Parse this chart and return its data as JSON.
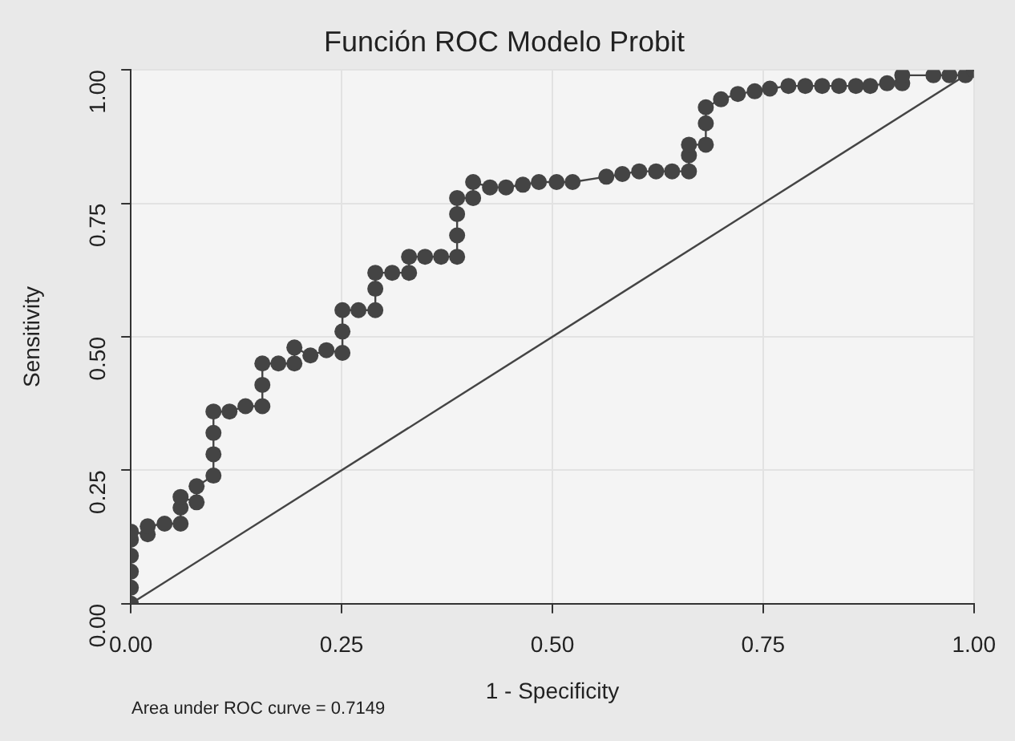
{
  "chart_data": {
    "type": "line",
    "title": "Función ROC Modelo Probit",
    "xlabel": "1 - Specificity",
    "ylabel": "Sensitivity",
    "annotations": [
      "Area under ROC curve = 0.7149"
    ],
    "series": [
      {
        "type": "line",
        "marker": "circle",
        "color": "#444444",
        "x": [
          0,
          0,
          0,
          0,
          0,
          0,
          0.02,
          0.02,
          0.04,
          0.059,
          0.059,
          0.059,
          0.078,
          0.078,
          0.098,
          0.098,
          0.098,
          0.098,
          0.117,
          0.136,
          0.156,
          0.156,
          0.156,
          0.175,
          0.194,
          0.194,
          0.213,
          0.232,
          0.251,
          0.251,
          0.251,
          0.27,
          0.29,
          0.29,
          0.29,
          0.31,
          0.33,
          0.33,
          0.349,
          0.368,
          0.387,
          0.387,
          0.387,
          0.387,
          0.406,
          0.406,
          0.426,
          0.445,
          0.465,
          0.484,
          0.505,
          0.524,
          0.564,
          0.583,
          0.603,
          0.623,
          0.642,
          0.662,
          0.662,
          0.662,
          0.682,
          0.682,
          0.682,
          0.7,
          0.72,
          0.74,
          0.758,
          0.78,
          0.8,
          0.82,
          0.84,
          0.86,
          0.877,
          0.897,
          0.915,
          0.915,
          0.952,
          0.971,
          0.99,
          1
        ],
        "values": [
          0,
          0.03,
          0.06,
          0.09,
          0.12,
          0.135,
          0.13,
          0.145,
          0.15,
          0.15,
          0.18,
          0.2,
          0.19,
          0.22,
          0.24,
          0.28,
          0.32,
          0.36,
          0.36,
          0.37,
          0.37,
          0.41,
          0.45,
          0.45,
          0.45,
          0.48,
          0.465,
          0.475,
          0.47,
          0.51,
          0.55,
          0.55,
          0.55,
          0.59,
          0.62,
          0.62,
          0.62,
          0.65,
          0.65,
          0.65,
          0.65,
          0.69,
          0.73,
          0.76,
          0.76,
          0.79,
          0.78,
          0.78,
          0.785,
          0.79,
          0.79,
          0.79,
          0.8,
          0.805,
          0.81,
          0.81,
          0.81,
          0.81,
          0.84,
          0.86,
          0.86,
          0.9,
          0.93,
          0.945,
          0.955,
          0.96,
          0.965,
          0.97,
          0.97,
          0.97,
          0.97,
          0.97,
          0.97,
          0.975,
          0.975,
          0.99,
          0.99,
          0.99,
          0.99,
          1
        ]
      },
      {
        "type": "line",
        "marker": "none",
        "color": "#444444",
        "x": [
          0,
          1
        ],
        "values": [
          0,
          1
        ]
      }
    ],
    "xlim": [
      0,
      1
    ],
    "ylim": [
      0,
      1
    ],
    "xticks": [
      {
        "value": 0,
        "label": "0.00"
      },
      {
        "value": 0.25,
        "label": "0.25"
      },
      {
        "value": 0.5,
        "label": "0.50"
      },
      {
        "value": 0.75,
        "label": "0.75"
      },
      {
        "value": 1,
        "label": "1.00"
      }
    ],
    "yticks": [
      {
        "value": 0,
        "label": "0.00"
      },
      {
        "value": 0.25,
        "label": "0.25"
      },
      {
        "value": 0.5,
        "label": "0.50"
      },
      {
        "value": 0.75,
        "label": "0.75"
      },
      {
        "value": 1,
        "label": "1.00"
      }
    ],
    "grid": true
  }
}
